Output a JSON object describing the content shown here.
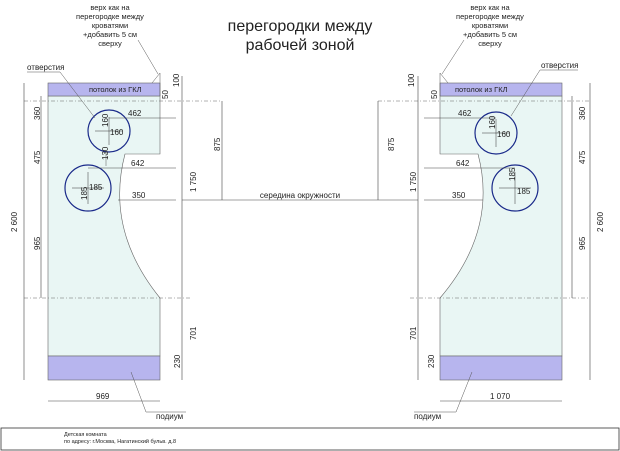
{
  "title": {
    "line1": "перегородки между",
    "line2": "рабочей зоной"
  },
  "note": {
    "line1": "верх как на",
    "line2": "перегородке между",
    "line3": "кроватями",
    "line4": "+добавить 5 см",
    "line5": "сверху"
  },
  "labels": {
    "holes": "отверстия",
    "ceiling": "потолок из ГКЛ",
    "circle_middle": "середина окружности",
    "podium": "подиум"
  },
  "left": {
    "total_height": "2 600",
    "h360": "360",
    "h475": "475",
    "h965": "965",
    "d462": "462",
    "d642": "642",
    "d350": "350",
    "d160a": "160",
    "d160b": "160",
    "d130": "130",
    "d185a": "185",
    "d185b": "185",
    "r100": "100",
    "r50": "50",
    "r1750": "1 750",
    "r875": "875",
    "r701": "701",
    "r230": "230",
    "width": "969"
  },
  "right": {
    "total_height": "2 600",
    "h360": "360",
    "h475": "475",
    "h965": "965",
    "d462": "462",
    "d642": "642",
    "d350": "350",
    "d160a": "160",
    "d160b": "160",
    "d185a": "185",
    "d185b": "185",
    "l100": "100",
    "l50": "50",
    "l1750": "1 750",
    "l875": "875",
    "l701": "701",
    "l230": "230",
    "width": "1 070"
  },
  "stamp": {
    "line1": "Детская комната",
    "line2": "по адресу: г.Москва, Нагатинский бульв. д.8"
  },
  "colors": {
    "panel": "#e9f6f4",
    "band": "#b7b5ee",
    "hole": "#1a2a8a"
  }
}
